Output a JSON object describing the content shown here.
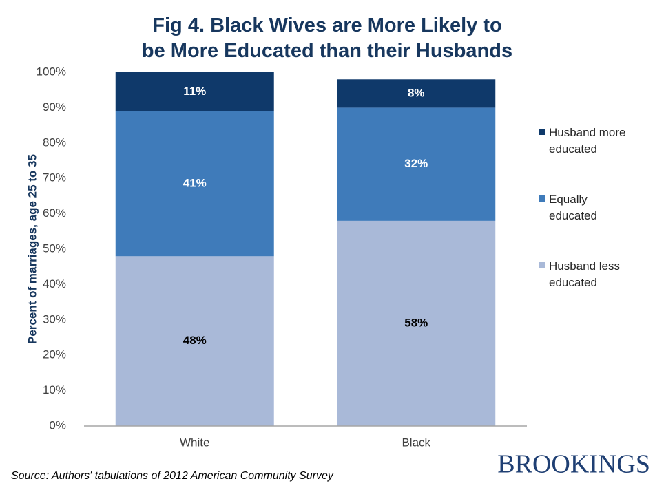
{
  "chart_data": {
    "type": "stacked_bar",
    "title": "Fig 4. Black Wives are More Likely to be More Educated than their Husbands",
    "y_label": "Percent of marriages, age 25 to 35",
    "source": "Source: Authors' tabulations of 2012 American Community Survey",
    "logo": "BROOKINGS",
    "categories": [
      "White",
      "Black"
    ],
    "series": [
      {
        "name": "Husband less educated",
        "color": "#a9b9d8",
        "values": [
          48,
          58
        ],
        "value_labels": [
          "48%",
          "58%"
        ]
      },
      {
        "name": "Equally educated",
        "color": "#3f7bba",
        "values": [
          41,
          32
        ],
        "value_labels": [
          "41%",
          "32%"
        ]
      },
      {
        "name": "Husband more educated",
        "color": "#0f396a",
        "values": [
          11,
          8
        ],
        "value_labels": [
          "11%",
          "8%"
        ]
      }
    ],
    "ylim": [
      0,
      100
    ],
    "yticks": [
      {
        "value": 0,
        "label": "0%"
      },
      {
        "value": 10,
        "label": "10%"
      },
      {
        "value": 20,
        "label": "20%"
      },
      {
        "value": 30,
        "label": "30%"
      },
      {
        "value": 40,
        "label": "40%"
      },
      {
        "value": 50,
        "label": "50%"
      },
      {
        "value": 60,
        "label": "60%"
      },
      {
        "value": 70,
        "label": "70%"
      },
      {
        "value": 80,
        "label": "80%"
      },
      {
        "value": 90,
        "label": "90%"
      },
      {
        "value": 100,
        "label": "100%"
      }
    ],
    "grid": false,
    "legend": "right"
  }
}
